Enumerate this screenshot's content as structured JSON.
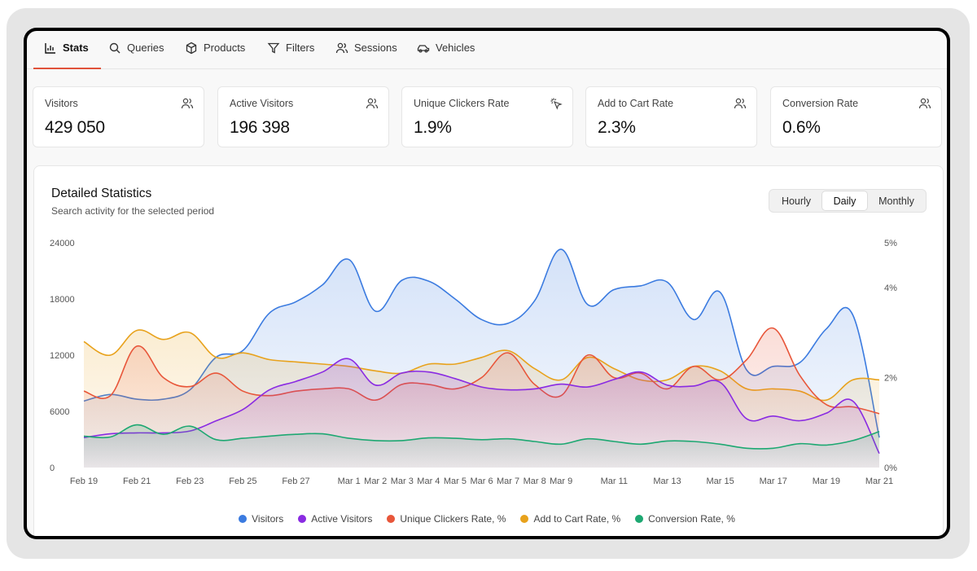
{
  "tabs": [
    {
      "label": "Stats",
      "icon": "bar-chart-icon",
      "active": true
    },
    {
      "label": "Queries",
      "icon": "search-icon"
    },
    {
      "label": "Products",
      "icon": "box-icon"
    },
    {
      "label": "Filters",
      "icon": "filter-icon"
    },
    {
      "label": "Sessions",
      "icon": "users-icon"
    },
    {
      "label": "Vehicles",
      "icon": "car-icon"
    }
  ],
  "cards": [
    {
      "label": "Visitors",
      "value": "429 050",
      "icon": "users-icon"
    },
    {
      "label": "Active Visitors",
      "value": "196 398",
      "icon": "users-icon"
    },
    {
      "label": "Unique Clickers Rate",
      "value": "1.9%",
      "icon": "click-icon"
    },
    {
      "label": "Add to Cart Rate",
      "value": "2.3%",
      "icon": "users-icon"
    },
    {
      "label": "Conversion Rate",
      "value": "0.6%",
      "icon": "users-icon"
    }
  ],
  "panel": {
    "title": "Detailed Statistics",
    "subtitle": "Search activity for the selected period",
    "periods": [
      "Hourly",
      "Daily",
      "Monthly"
    ],
    "selected_period": "Daily"
  },
  "colors": {
    "visitors": "#3b7be0",
    "active_visitors": "#8a2be2",
    "unique_clickers": "#e8563a",
    "add_to_cart": "#e8a21c",
    "conversion": "#1ea872",
    "accent": "#e0523a"
  },
  "chart_data": {
    "type": "area",
    "x_tick_labels": [
      "Feb 19",
      "Feb 21",
      "Feb 23",
      "Feb 25",
      "Feb 27",
      "Mar 1",
      "Mar 2",
      "Mar 3",
      "Mar 4",
      "Mar 5",
      "Mar 6",
      "Mar 7",
      "Mar 8",
      "Mar 9",
      "Mar 11",
      "Mar 13",
      "Mar 15",
      "Mar 17",
      "Mar 19",
      "Mar 21"
    ],
    "x": [
      "Feb 19",
      "Feb 20",
      "Feb 21",
      "Feb 22",
      "Feb 23",
      "Feb 24",
      "Feb 25",
      "Feb 26",
      "Feb 27",
      "Feb 28",
      "Mar 1",
      "Mar 2",
      "Mar 3",
      "Mar 4",
      "Mar 5",
      "Mar 6",
      "Mar 7",
      "Mar 8",
      "Mar 9",
      "Mar 10",
      "Mar 11",
      "Mar 12",
      "Mar 13",
      "Mar 14",
      "Mar 15",
      "Mar 16",
      "Mar 17",
      "Mar 18",
      "Mar 19",
      "Mar 20",
      "Mar 21"
    ],
    "y_left_ticks": [
      "0",
      "6000",
      "12000",
      "18000",
      "24000"
    ],
    "y_right_ticks": [
      "0%",
      "2%",
      "4%",
      "5%"
    ],
    "y_left_range": [
      0,
      24000
    ],
    "y_right_range": [
      0,
      5
    ],
    "series": [
      {
        "name": "Visitors",
        "axis": "left",
        "color": "#3b7be0",
        "values": [
          7100,
          7800,
          7300,
          7300,
          8300,
          11800,
          12500,
          16500,
          17700,
          19500,
          22200,
          16700,
          20000,
          19900,
          18000,
          15800,
          15400,
          17800,
          23300,
          17400,
          19000,
          19400,
          19800,
          15800,
          18700,
          10400,
          10800,
          11200,
          14800,
          16300,
          3200
        ]
      },
      {
        "name": "Active Visitors",
        "axis": "left",
        "color": "#8a2be2",
        "values": [
          3200,
          3600,
          3700,
          3700,
          3900,
          5000,
          6200,
          8300,
          9200,
          10200,
          11600,
          8800,
          10100,
          10200,
          9500,
          8600,
          8300,
          8400,
          8900,
          8600,
          9400,
          10200,
          8800,
          8700,
          9100,
          5200,
          5500,
          5000,
          5800,
          7100,
          1500
        ]
      },
      {
        "name": "Unique Clickers Rate, %",
        "axis": "right",
        "color": "#e8563a",
        "values": [
          1.7,
          1.6,
          2.7,
          2.0,
          1.8,
          2.1,
          1.7,
          1.6,
          1.7,
          1.75,
          1.75,
          1.5,
          1.85,
          1.85,
          1.75,
          2.0,
          2.55,
          1.85,
          1.6,
          2.5,
          2.0,
          2.1,
          1.75,
          2.25,
          1.95,
          2.4,
          3.1,
          2.05,
          1.4,
          1.35,
          1.2
        ]
      },
      {
        "name": "Add to Cart Rate, %",
        "axis": "right",
        "color": "#e8a21c",
        "values": [
          2.8,
          2.5,
          3.05,
          2.85,
          3.0,
          2.45,
          2.55,
          2.4,
          2.35,
          2.3,
          2.25,
          2.15,
          2.1,
          2.3,
          2.3,
          2.45,
          2.6,
          2.2,
          1.95,
          2.45,
          2.2,
          1.95,
          1.95,
          2.25,
          2.15,
          1.75,
          1.75,
          1.7,
          1.5,
          1.95,
          1.95
        ]
      },
      {
        "name": "Conversion Rate, %",
        "axis": "right",
        "color": "#1ea872",
        "values": [
          0.7,
          0.68,
          0.95,
          0.74,
          0.92,
          0.62,
          0.65,
          0.7,
          0.74,
          0.75,
          0.65,
          0.6,
          0.6,
          0.66,
          0.65,
          0.62,
          0.64,
          0.58,
          0.52,
          0.64,
          0.58,
          0.52,
          0.59,
          0.58,
          0.52,
          0.43,
          0.43,
          0.53,
          0.5,
          0.6,
          0.8
        ]
      }
    ],
    "legend_position": "bottom",
    "grid": false
  }
}
